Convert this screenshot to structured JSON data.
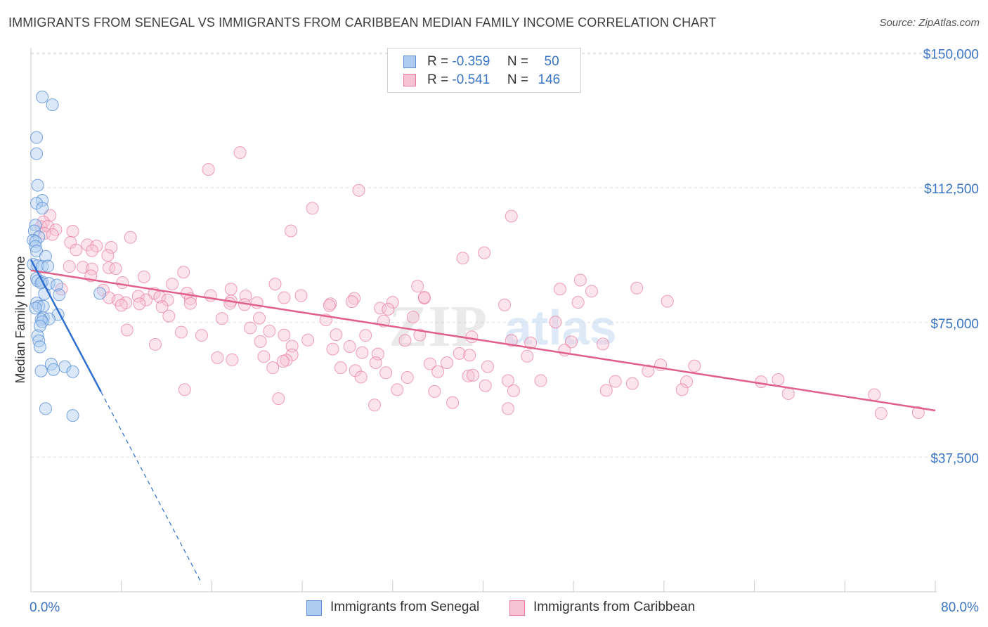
{
  "title": "IMMIGRANTS FROM SENEGAL VS IMMIGRANTS FROM CARIBBEAN MEDIAN FAMILY INCOME CORRELATION CHART",
  "source": "Source: ZipAtlas.com",
  "watermark": {
    "zip": "ZIP",
    "atlas": "atlas"
  },
  "legend": {
    "rows": [
      {
        "r_label": "R =",
        "r_value": "-0.359",
        "n_label": "N =",
        "n_value": "50"
      },
      {
        "r_label": "R =",
        "r_value": "-0.541",
        "n_label": "N =",
        "n_value": "146"
      }
    ]
  },
  "colors": {
    "senegal_fill": "#aecbf0",
    "senegal_stroke": "#5a8fd6",
    "senegal_line": "#2f6fd0",
    "caribbean_fill": "#f7c3d4",
    "caribbean_stroke": "#e8789f",
    "caribbean_line": "#e0608a",
    "tick_text": "#3a75c4",
    "grid": "#dddddd"
  },
  "chart_data": {
    "type": "scatter",
    "title": "IMMIGRANTS FROM SENEGAL VS IMMIGRANTS FROM CARIBBEAN MEDIAN FAMILY INCOME CORRELATION CHART",
    "xlabel": "",
    "ylabel": "Median Family Income",
    "xlim": [
      0,
      80
    ],
    "ylim": [
      0,
      155000
    ],
    "x_tick_labels": [
      "0.0%",
      "80.0%"
    ],
    "y_ticks": [
      37500,
      75000,
      112500,
      150000
    ],
    "y_tick_labels": [
      "$37,500",
      "$75,000",
      "$112,500",
      "$150,000"
    ],
    "grid": true,
    "legend_position": "top-center",
    "series": [
      {
        "name": "Immigrants from Senegal",
        "r": -0.359,
        "n": 50,
        "trend": {
          "x": [
            0.0,
            6.2
          ],
          "y": [
            92500,
            55700
          ],
          "dashed_to": [
            15.0,
            3000
          ]
        },
        "points": [
          [
            1.0,
            137800
          ],
          [
            1.9,
            135600
          ],
          [
            0.5,
            126500
          ],
          [
            0.5,
            122000
          ],
          [
            0.6,
            113200
          ],
          [
            1.0,
            109000
          ],
          [
            0.5,
            108200
          ],
          [
            1.0,
            106800
          ],
          [
            0.4,
            102100
          ],
          [
            0.3,
            100500
          ],
          [
            0.7,
            98800
          ],
          [
            0.2,
            97900
          ],
          [
            0.4,
            97500
          ],
          [
            0.4,
            96200
          ],
          [
            0.5,
            94900
          ],
          [
            1.3,
            93400
          ],
          [
            0.2,
            91200
          ],
          [
            0.6,
            90800
          ],
          [
            1.0,
            90600
          ],
          [
            1.5,
            90700
          ],
          [
            0.5,
            87300
          ],
          [
            0.6,
            86600
          ],
          [
            1.0,
            86300
          ],
          [
            0.9,
            86000
          ],
          [
            1.6,
            85900
          ],
          [
            2.3,
            85400
          ],
          [
            1.2,
            83000
          ],
          [
            2.5,
            82700
          ],
          [
            6.1,
            83100
          ],
          [
            0.5,
            80400
          ],
          [
            0.7,
            79500
          ],
          [
            1.1,
            79500
          ],
          [
            0.4,
            79000
          ],
          [
            2.4,
            77200
          ],
          [
            1.1,
            76300
          ],
          [
            1.6,
            76000
          ],
          [
            0.9,
            75800
          ],
          [
            1.0,
            75200
          ],
          [
            0.8,
            74000
          ],
          [
            0.6,
            71300
          ],
          [
            0.7,
            69900
          ],
          [
            0.8,
            68200
          ],
          [
            1.8,
            63400
          ],
          [
            3.0,
            62700
          ],
          [
            0.9,
            61500
          ],
          [
            2.0,
            61900
          ],
          [
            3.7,
            61300
          ],
          [
            1.3,
            51000
          ],
          [
            3.7,
            49100
          ]
        ]
      },
      {
        "name": "Immigrants from Caribbean",
        "r": -0.541,
        "n": 146,
        "trend": {
          "x": [
            0.0,
            80.0
          ],
          "y": [
            89500,
            50500
          ]
        },
        "points": [
          [
            18.5,
            122300
          ],
          [
            15.7,
            117600
          ],
          [
            29.0,
            111800
          ],
          [
            24.9,
            106800
          ],
          [
            42.5,
            104600
          ],
          [
            23.0,
            100500
          ],
          [
            1.7,
            104800
          ],
          [
            1.1,
            103000
          ],
          [
            0.9,
            101700
          ],
          [
            1.5,
            101800
          ],
          [
            2.2,
            100800
          ],
          [
            3.7,
            100400
          ],
          [
            1.2,
            99800
          ],
          [
            1.9,
            99500
          ],
          [
            8.8,
            98700
          ],
          [
            3.5,
            97300
          ],
          [
            5.0,
            96600
          ],
          [
            5.8,
            96300
          ],
          [
            7.1,
            95900
          ],
          [
            4.0,
            95200
          ],
          [
            5.4,
            95000
          ],
          [
            6.8,
            93700
          ],
          [
            40.1,
            94400
          ],
          [
            38.2,
            92900
          ],
          [
            3.4,
            90600
          ],
          [
            4.6,
            90400
          ],
          [
            6.9,
            90200
          ],
          [
            7.5,
            90000
          ],
          [
            5.4,
            89900
          ],
          [
            13.5,
            89000
          ],
          [
            5.3,
            88000
          ],
          [
            10.0,
            87700
          ],
          [
            8.1,
            86100
          ],
          [
            2.7,
            84300
          ],
          [
            6.4,
            84000
          ],
          [
            12.5,
            85700
          ],
          [
            48.6,
            86800
          ],
          [
            21.6,
            85700
          ],
          [
            34.2,
            85100
          ],
          [
            17.7,
            84300
          ],
          [
            46.8,
            84300
          ],
          [
            53.6,
            84600
          ],
          [
            49.6,
            83700
          ],
          [
            13.8,
            83200
          ],
          [
            10.9,
            83100
          ],
          [
            9.5,
            82300
          ],
          [
            11.4,
            82100
          ],
          [
            15.9,
            82500
          ],
          [
            6.9,
            81900
          ],
          [
            7.7,
            81200
          ],
          [
            19.0,
            82400
          ],
          [
            23.9,
            82500
          ],
          [
            14.1,
            81600
          ],
          [
            17.7,
            81000
          ],
          [
            10.2,
            81300
          ],
          [
            12.1,
            81300
          ],
          [
            22.4,
            81900
          ],
          [
            28.6,
            81700
          ],
          [
            34.8,
            81800
          ],
          [
            34.8,
            82000
          ],
          [
            41.9,
            79900
          ],
          [
            32.0,
            80600
          ],
          [
            48.4,
            80600
          ],
          [
            56.3,
            80900
          ],
          [
            20.0,
            80500
          ],
          [
            26.5,
            80200
          ],
          [
            8.4,
            80500
          ],
          [
            9.6,
            80200
          ],
          [
            8.0,
            79800
          ],
          [
            11.6,
            79400
          ],
          [
            14.1,
            80300
          ],
          [
            17.6,
            80300
          ],
          [
            18.9,
            80000
          ],
          [
            26.4,
            79700
          ],
          [
            28.4,
            80800
          ],
          [
            30.9,
            79000
          ],
          [
            31.6,
            78700
          ],
          [
            12.2,
            76800
          ],
          [
            16.9,
            76100
          ],
          [
            20.2,
            76200
          ],
          [
            26.1,
            75700
          ],
          [
            31.2,
            75400
          ],
          [
            33.8,
            76500
          ],
          [
            46.4,
            75100
          ],
          [
            19.4,
            73500
          ],
          [
            21.1,
            72600
          ],
          [
            8.5,
            72900
          ],
          [
            13.3,
            72300
          ],
          [
            15.1,
            71400
          ],
          [
            22.4,
            71500
          ],
          [
            27.0,
            71600
          ],
          [
            29.6,
            71400
          ],
          [
            24.5,
            70100
          ],
          [
            33.1,
            70000
          ],
          [
            34.4,
            71500
          ],
          [
            39.0,
            71000
          ],
          [
            42.5,
            70000
          ],
          [
            44.2,
            69300
          ],
          [
            47.8,
            69600
          ],
          [
            47.2,
            67300
          ],
          [
            20.3,
            69700
          ],
          [
            23.1,
            68400
          ],
          [
            28.2,
            68300
          ],
          [
            11.0,
            68900
          ],
          [
            23.1,
            66000
          ],
          [
            26.7,
            67600
          ],
          [
            29.3,
            66600
          ],
          [
            30.7,
            66200
          ],
          [
            37.9,
            66400
          ],
          [
            38.8,
            65900
          ],
          [
            43.9,
            65600
          ],
          [
            50.6,
            69000
          ],
          [
            40.4,
            62700
          ],
          [
            36.8,
            63800
          ],
          [
            30.5,
            63800
          ],
          [
            35.3,
            63500
          ],
          [
            22.6,
            64500
          ],
          [
            20.6,
            65500
          ],
          [
            17.8,
            64600
          ],
          [
            16.5,
            65200
          ],
          [
            22.3,
            64200
          ],
          [
            21.4,
            62400
          ],
          [
            27.4,
            62400
          ],
          [
            28.7,
            61600
          ],
          [
            31.4,
            61000
          ],
          [
            36.0,
            61300
          ],
          [
            38.7,
            60100
          ],
          [
            39.1,
            60300
          ],
          [
            29.2,
            59800
          ],
          [
            33.3,
            59700
          ],
          [
            42.2,
            58800
          ],
          [
            45.1,
            58800
          ],
          [
            54.6,
            61500
          ],
          [
            55.7,
            63200
          ],
          [
            58.7,
            62900
          ],
          [
            58.0,
            58500
          ],
          [
            64.6,
            58500
          ],
          [
            66.1,
            59100
          ],
          [
            53.2,
            58000
          ],
          [
            51.7,
            58600
          ],
          [
            42.7,
            56000
          ],
          [
            40.2,
            57400
          ],
          [
            35.7,
            55800
          ],
          [
            32.4,
            56300
          ],
          [
            50.9,
            56100
          ],
          [
            57.6,
            56300
          ],
          [
            67.0,
            55200
          ],
          [
            74.6,
            54900
          ],
          [
            13.6,
            56300
          ],
          [
            21.9,
            53800
          ],
          [
            37.3,
            52700
          ],
          [
            42.2,
            51000
          ],
          [
            30.4,
            52000
          ],
          [
            78.5,
            49900
          ],
          [
            75.2,
            49700
          ]
        ]
      }
    ]
  },
  "bottom_legend": {
    "items": [
      {
        "label": "Immigrants from Senegal"
      },
      {
        "label": "Immigrants from Caribbean"
      }
    ]
  }
}
